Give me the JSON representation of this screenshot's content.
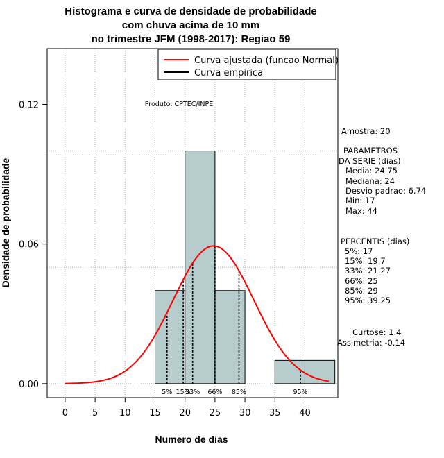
{
  "chart_data": {
    "type": "bar",
    "title_lines": [
      "Histograma e curva de densidade de probabilidade",
      "com chuva acima de 10 mm",
      "no trimestre JFM (1998-2017): Regiao 59"
    ],
    "xlabel": "Numero de dias",
    "ylabel": "Densidade de probabilidade",
    "xlim": [
      -3,
      45.5
    ],
    "ylim": [
      -0.006,
      0.144
    ],
    "x_ticks": [
      0,
      5,
      10,
      15,
      20,
      25,
      30,
      35,
      40
    ],
    "y_ticks": [
      0.0,
      0.06,
      0.12
    ],
    "y_tick_labels": [
      "0.00",
      "0.06",
      "0.12"
    ],
    "grid": true,
    "grid_x": [
      0,
      5,
      10,
      15,
      20,
      25,
      30,
      35,
      40
    ],
    "grid_y": [
      0.0,
      0.05,
      0.1
    ],
    "bins": [
      {
        "x0": 15,
        "x1": 20,
        "density": 0.04
      },
      {
        "x0": 20,
        "x1": 25,
        "density": 0.1
      },
      {
        "x0": 25,
        "x1": 30,
        "density": 0.04
      },
      {
        "x0": 30,
        "x1": 35,
        "density": 0.0
      },
      {
        "x0": 35,
        "x1": 40,
        "density": 0.01
      },
      {
        "x0": 40,
        "x1": 45,
        "density": 0.01
      }
    ],
    "normal_fit": {
      "mean": 24.75,
      "sd": 6.74,
      "x_from": 0,
      "x_to": 44
    },
    "percentile_lines": [
      {
        "label": "5%",
        "x": 17
      },
      {
        "label": "15%",
        "x": 19.7
      },
      {
        "label": "33%",
        "x": 21.27
      },
      {
        "label": "66%",
        "x": 25
      },
      {
        "label": "85%",
        "x": 29
      },
      {
        "label": "95%",
        "x": 39.25
      }
    ],
    "legend": {
      "position": "top-right",
      "entries": [
        {
          "label": "Curva ajustada (funcao Normal)",
          "color": "#ff0000"
        },
        {
          "label": "Curva empirica",
          "color": "#000000"
        }
      ]
    },
    "annotation": "Produto: CPTEC/INPE",
    "colors": {
      "bar_fill": "#b7cccc",
      "curve": "#ff0000",
      "grid": "#b4b4b4"
    }
  },
  "stats": {
    "amostra": "Amostra: 20",
    "params_title_1": "PARAMETROS",
    "params_title_2": "DA SERIE (dias)",
    "media": "Media: 24.75",
    "mediana": "Mediana: 24",
    "desvio": "Desvio padrao: 6.74",
    "min": "Min: 17",
    "max": "Max: 44",
    "percentis_title": "PERCENTIS (dias)",
    "p5": "5%: 17",
    "p15": "15%: 19.7",
    "p33": "33%: 21.27",
    "p66": "66%: 25",
    "p85": "85%: 29",
    "p95": "95%: 39.25",
    "curtose": "Curtose: 1.4",
    "assimetria": "Assimetria: -0.14"
  }
}
